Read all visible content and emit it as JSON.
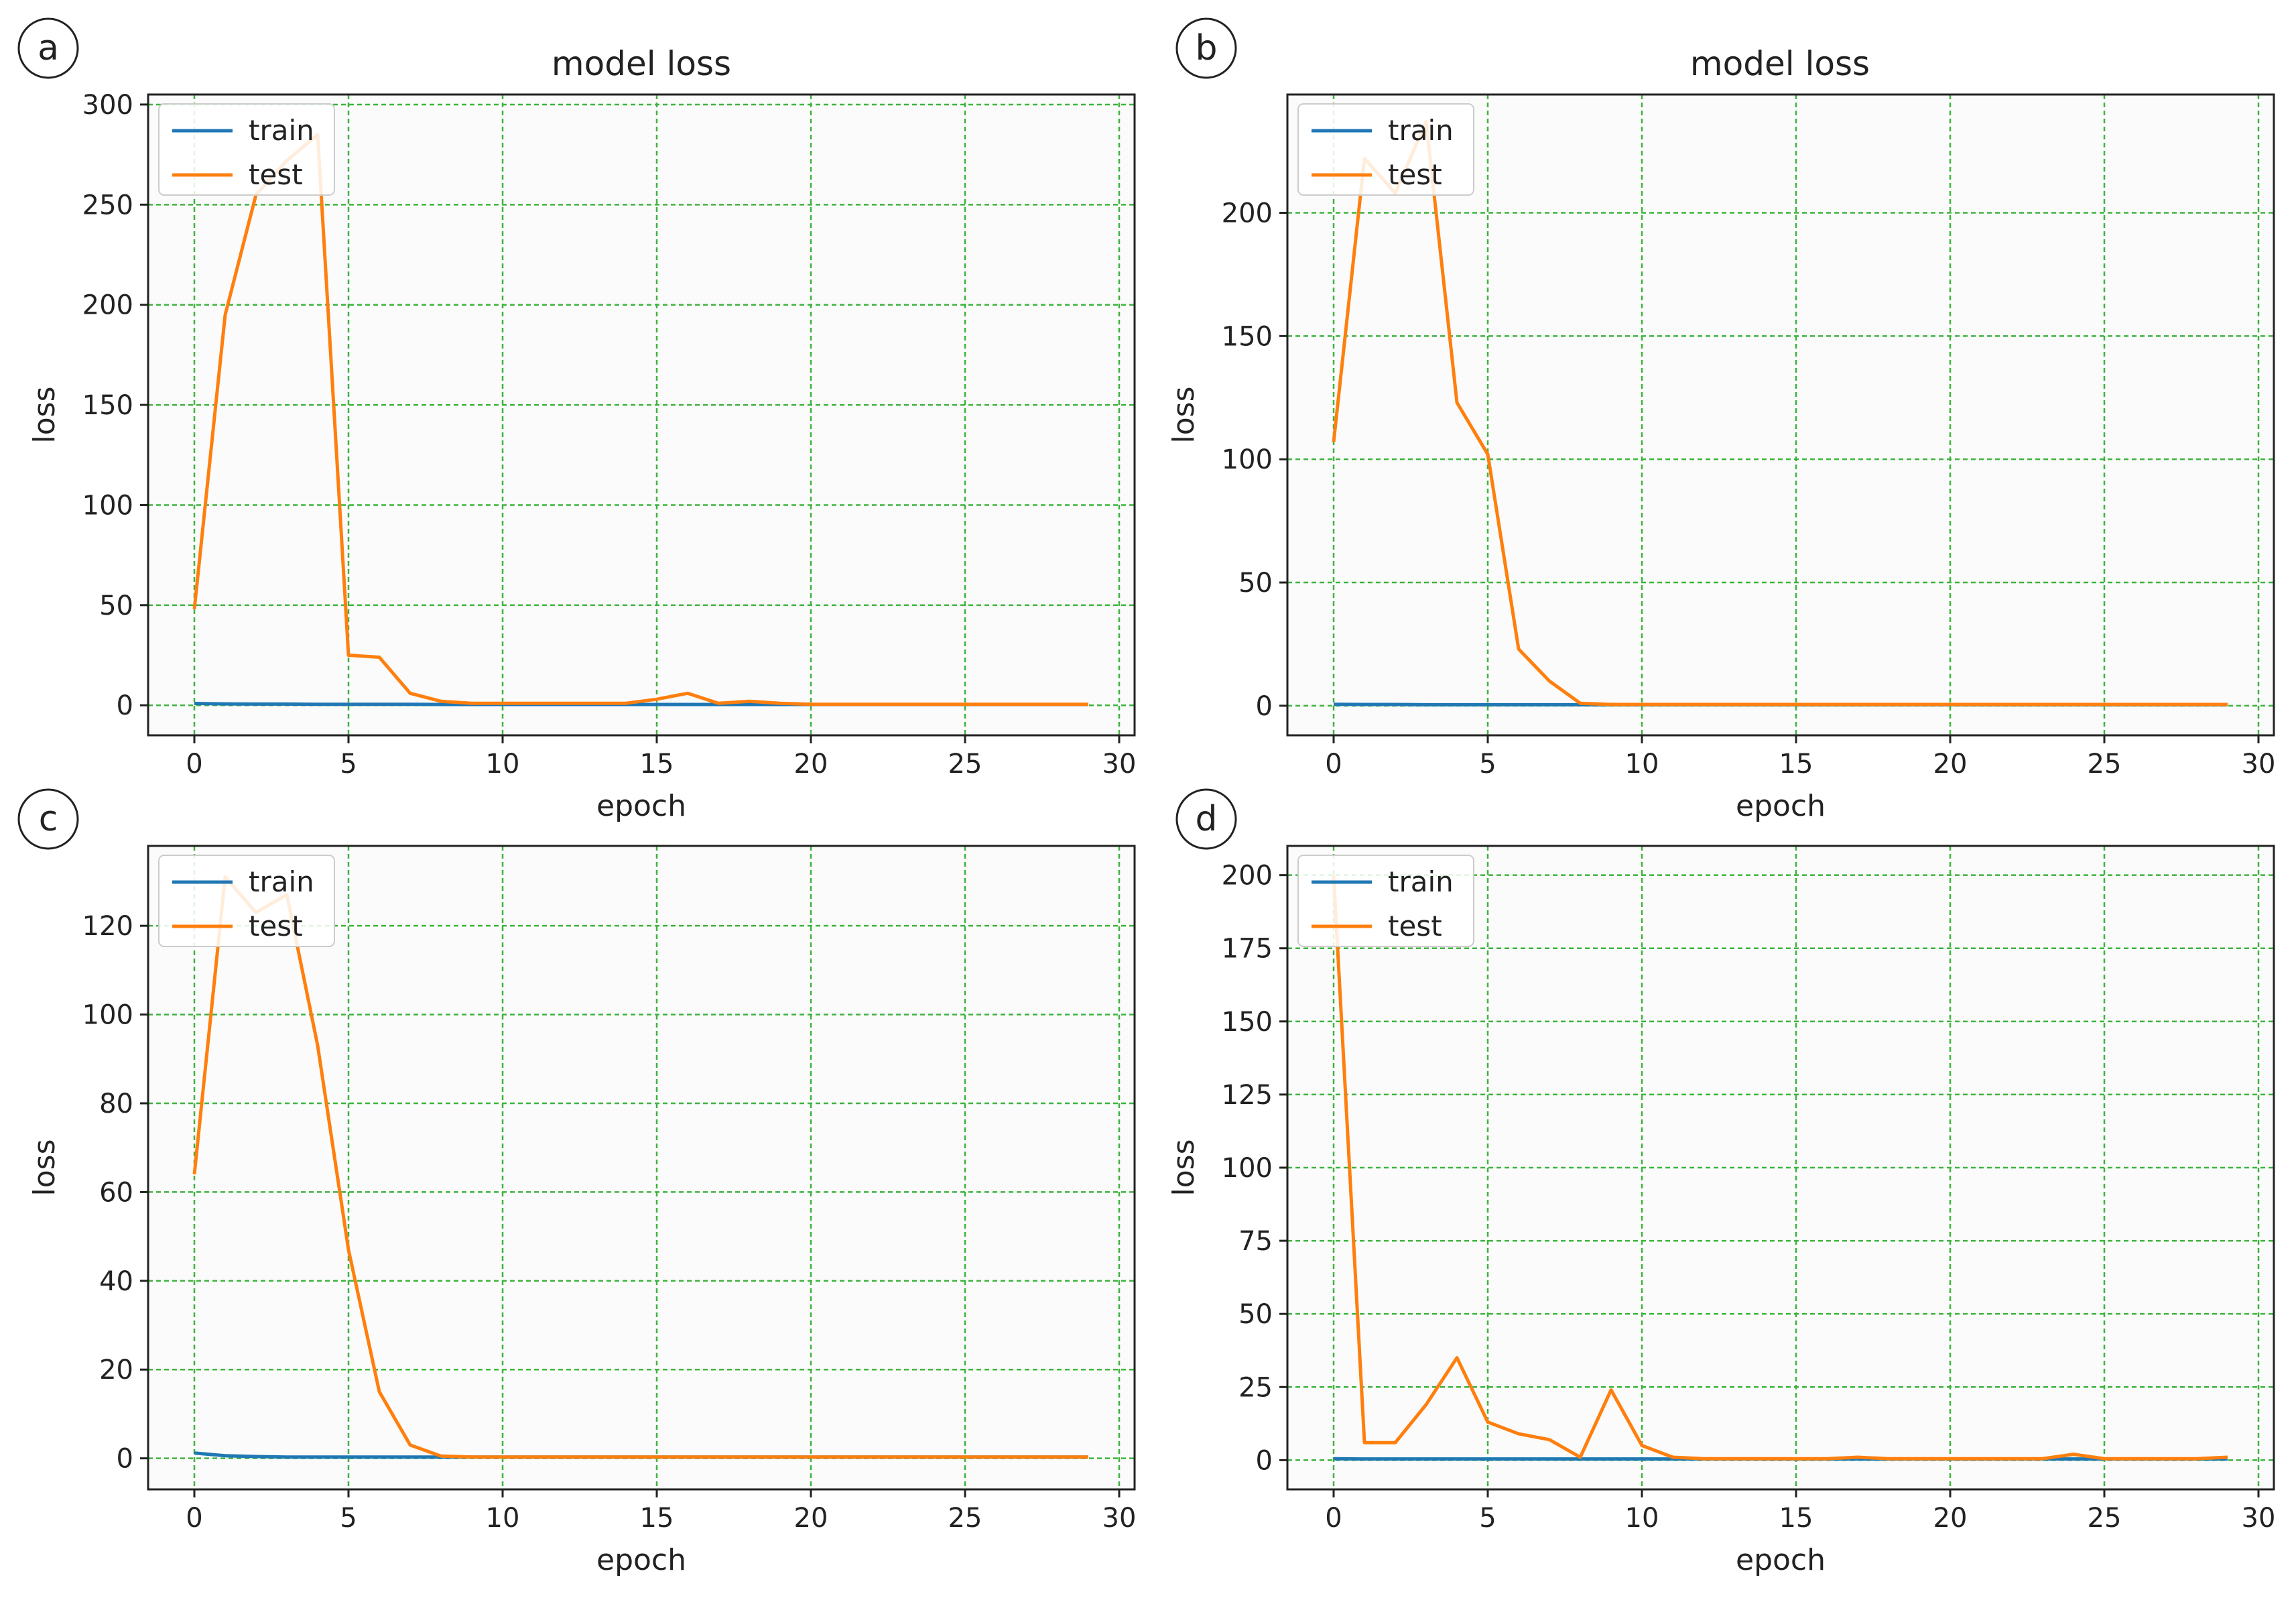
{
  "chart_data": [
    {
      "panel": "a",
      "type": "line",
      "title": "model loss",
      "xlabel": "epoch",
      "ylabel": "loss",
      "xlim": [
        -1.5,
        30.5
      ],
      "ylim": [
        -15,
        305
      ],
      "xticks": [
        0,
        5,
        10,
        15,
        20,
        25,
        30
      ],
      "yticks": [
        0,
        50,
        100,
        150,
        200,
        250,
        300
      ],
      "grid": true,
      "legend": "upper left",
      "series": [
        {
          "name": "train",
          "color": "#1f77b4",
          "values": [
            0.9,
            0.7,
            0.6,
            0.6,
            0.5,
            0.5,
            0.5,
            0.5,
            0.4,
            0.4,
            0.4,
            0.4,
            0.4,
            0.4,
            0.4,
            0.4,
            0.4,
            0.4,
            0.4,
            0.4,
            0.4,
            0.4,
            0.4,
            0.4,
            0.4,
            0.4,
            0.4,
            0.4,
            0.4,
            0.4
          ]
        },
        {
          "name": "test",
          "color": "#ff7f0e",
          "values": [
            48,
            195,
            255,
            272,
            285,
            25,
            24,
            6,
            2,
            1,
            1,
            1,
            1,
            1,
            1,
            3,
            6,
            1,
            2,
            1,
            0.5,
            0.5,
            0.5,
            0.5,
            0.5,
            0.5,
            0.5,
            0.5,
            0.5,
            0.5
          ]
        }
      ]
    },
    {
      "panel": "b",
      "type": "line",
      "title": "model loss",
      "xlabel": "epoch",
      "ylabel": "loss",
      "xlim": [
        -1.5,
        30.5
      ],
      "ylim": [
        -12,
        248
      ],
      "xticks": [
        0,
        5,
        10,
        15,
        20,
        25,
        30
      ],
      "yticks": [
        0,
        50,
        100,
        150,
        200
      ],
      "grid": true,
      "legend": "upper left",
      "series": [
        {
          "name": "train",
          "color": "#1f77b4",
          "values": [
            0.6,
            0.5,
            0.5,
            0.4,
            0.4,
            0.4,
            0.4,
            0.4,
            0.4,
            0.4,
            0.4,
            0.4,
            0.4,
            0.4,
            0.4,
            0.4,
            0.4,
            0.4,
            0.4,
            0.4,
            0.4,
            0.4,
            0.4,
            0.4,
            0.4,
            0.4,
            0.4,
            0.4,
            0.4,
            0.4
          ]
        },
        {
          "name": "test",
          "color": "#ff7f0e",
          "values": [
            107,
            222,
            208,
            237,
            123,
            102,
            23,
            10,
            1,
            0.5,
            0.5,
            0.5,
            0.5,
            0.5,
            0.5,
            0.5,
            0.5,
            0.5,
            0.5,
            0.5,
            0.5,
            0.5,
            0.5,
            0.5,
            0.5,
            0.5,
            0.5,
            0.5,
            0.5,
            0.5
          ]
        }
      ]
    },
    {
      "panel": "c",
      "type": "line",
      "title": "",
      "xlabel": "epoch",
      "ylabel": "loss",
      "xlim": [
        -1.5,
        30.5
      ],
      "ylim": [
        -7,
        138
      ],
      "xticks": [
        0,
        5,
        10,
        15,
        20,
        25,
        30
      ],
      "yticks": [
        0,
        20,
        40,
        60,
        80,
        100,
        120
      ],
      "grid": true,
      "legend": "upper left",
      "series": [
        {
          "name": "train",
          "color": "#1f77b4",
          "values": [
            1.2,
            0.6,
            0.4,
            0.3,
            0.3,
            0.3,
            0.3,
            0.3,
            0.3,
            0.3,
            0.3,
            0.3,
            0.3,
            0.3,
            0.3,
            0.3,
            0.3,
            0.3,
            0.3,
            0.3,
            0.3,
            0.3,
            0.3,
            0.3,
            0.3,
            0.3,
            0.3,
            0.3,
            0.3,
            0.3
          ]
        },
        {
          "name": "test",
          "color": "#ff7f0e",
          "values": [
            64,
            131,
            123,
            127,
            93,
            47,
            15,
            3,
            0.5,
            0.3,
            0.3,
            0.3,
            0.3,
            0.3,
            0.3,
            0.3,
            0.3,
            0.3,
            0.3,
            0.3,
            0.3,
            0.3,
            0.3,
            0.3,
            0.3,
            0.3,
            0.3,
            0.3,
            0.3,
            0.3
          ]
        }
      ]
    },
    {
      "panel": "d",
      "type": "line",
      "title": "",
      "xlabel": "epoch",
      "ylabel": "loss",
      "xlim": [
        -1.5,
        30.5
      ],
      "ylim": [
        -10,
        210
      ],
      "xticks": [
        0,
        5,
        10,
        15,
        20,
        25,
        30
      ],
      "yticks": [
        0,
        25,
        50,
        75,
        100,
        125,
        150,
        175,
        200
      ],
      "grid": true,
      "legend": "upper left",
      "series": [
        {
          "name": "train",
          "color": "#1f77b4",
          "values": [
            0.5,
            0.4,
            0.4,
            0.4,
            0.4,
            0.4,
            0.4,
            0.4,
            0.4,
            0.4,
            0.4,
            0.4,
            0.4,
            0.4,
            0.4,
            0.4,
            0.4,
            0.4,
            0.4,
            0.4,
            0.4,
            0.4,
            0.4,
            0.4,
            0.4,
            0.4,
            0.4,
            0.4,
            0.4,
            0.4
          ]
        },
        {
          "name": "test",
          "color": "#ff7f0e",
          "values": [
            200,
            6,
            6,
            19,
            35,
            13,
            9,
            7,
            1,
            24,
            5,
            1,
            0.5,
            0.5,
            0.5,
            0.5,
            0.5,
            1,
            0.5,
            0.5,
            0.5,
            0.5,
            0.5,
            0.5,
            2,
            0.5,
            0.5,
            0.5,
            0.5,
            1
          ]
        }
      ]
    }
  ]
}
